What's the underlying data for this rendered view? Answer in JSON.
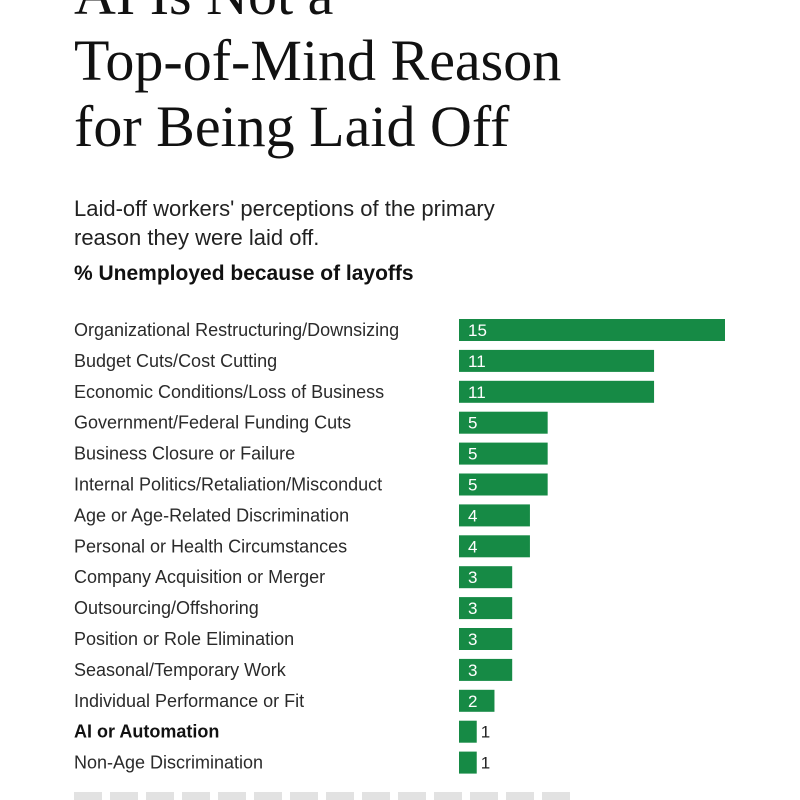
{
  "title": {
    "lines": [
      "AI Is Not a",
      "Top-of-Mind Reason",
      "for Being Laid Off"
    ]
  },
  "subtitle": {
    "lines": [
      "Laid-off workers' perceptions of the primary",
      "reason they were laid off."
    ]
  },
  "measure_label": "% Unemployed because of layoffs",
  "colors": {
    "bar": "#168a45",
    "label_inside": "#ffffff",
    "label_outside": "#222222"
  },
  "chart_data": {
    "type": "bar",
    "orientation": "horizontal",
    "title": "AI Is Not a Top-of-Mind Reason for Being Laid Off",
    "subtitle": "Laid-off workers' perceptions of the primary reason they were laid off.",
    "ylabel": "% Unemployed because of layoffs",
    "categories": [
      "Organizational Restructuring/Downsizing",
      "Budget Cuts/Cost Cutting",
      "Economic Conditions/Loss of Business",
      "Government/Federal Funding Cuts",
      "Business Closure or Failure",
      "Internal Politics/Retaliation/Misconduct",
      "Age or Age-Related Discrimination",
      "Personal or Health Circumstances",
      "Company Acquisition or Merger",
      "Outsourcing/Offshoring",
      "Position or Role Elimination",
      "Seasonal/Temporary Work",
      "Individual Performance or Fit",
      "AI or Automation",
      "Non-Age Discrimination"
    ],
    "values": [
      15,
      11,
      11,
      5,
      5,
      5,
      4,
      4,
      3,
      3,
      3,
      3,
      2,
      1,
      1
    ],
    "highlighted_category": "AI or Automation",
    "xlim": [
      0,
      15
    ],
    "grid": false,
    "legend": "none"
  }
}
